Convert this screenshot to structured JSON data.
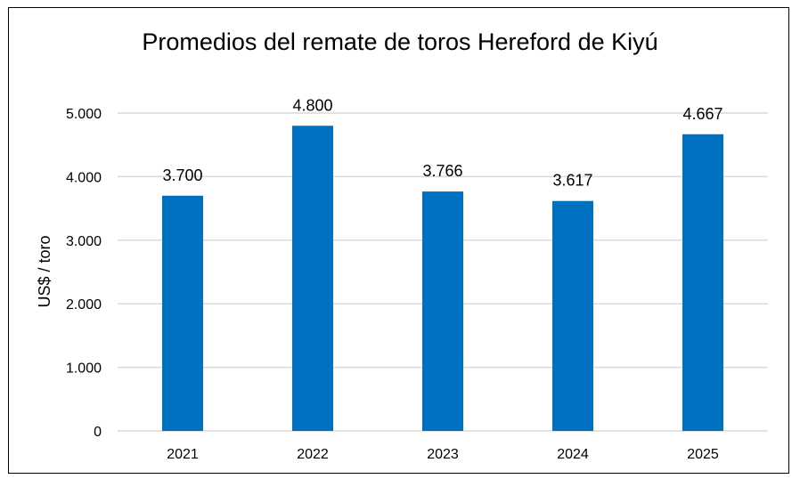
{
  "chart_data": {
    "type": "bar",
    "title": "Promedios del remate de toros Hereford de Kiyú",
    "xlabel": "",
    "ylabel": "US$ / toro",
    "categories": [
      "2021",
      "2022",
      "2023",
      "2024",
      "2025"
    ],
    "values": [
      3700,
      4800,
      3766,
      3617,
      4667
    ],
    "data_labels": [
      "3.700",
      "4.800",
      "3.766",
      "3.617",
      "4.667"
    ],
    "ylim": [
      0,
      5000
    ],
    "yticks": [
      0,
      1000,
      2000,
      3000,
      4000,
      5000
    ],
    "ytick_labels": [
      "0",
      "1.000",
      "2.000",
      "3.000",
      "4.000",
      "5.000"
    ],
    "grid": true,
    "legend": "none",
    "colors": {
      "bar": "#0070C0",
      "grid": "#D9D9D9",
      "border": "#000000"
    }
  }
}
